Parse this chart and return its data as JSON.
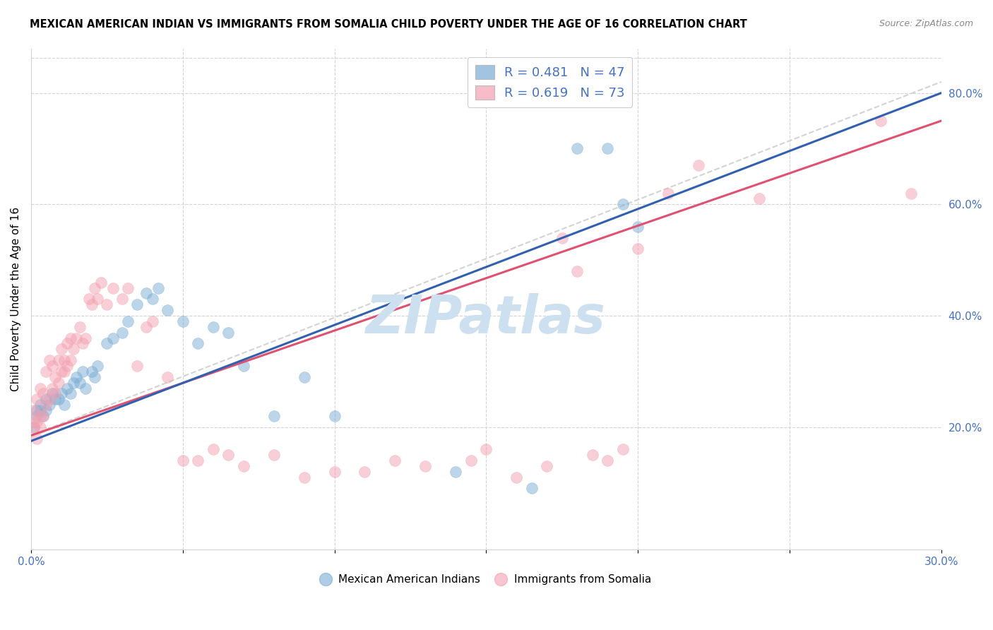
{
  "title": "MEXICAN AMERICAN INDIAN VS IMMIGRANTS FROM SOMALIA CHILD POVERTY UNDER THE AGE OF 16 CORRELATION CHART",
  "source": "Source: ZipAtlas.com",
  "tick_color": "#4472c4",
  "ylabel": "Child Poverty Under the Age of 16",
  "xlim": [
    0.0,
    0.3
  ],
  "ylim": [
    -0.02,
    0.88
  ],
  "blue_R": 0.481,
  "blue_N": 47,
  "pink_R": 0.619,
  "pink_N": 73,
  "blue_color": "#7aadd4",
  "pink_color": "#f4a0b0",
  "blue_line_color": "#3060b0",
  "pink_line_color": "#e05070",
  "blue_label": "Mexican American Indians",
  "pink_label": "Immigrants from Somalia",
  "legend_R_color": "#4472c4",
  "watermark": "ZIPatlas",
  "watermark_color": "#cde0ef",
  "blue_scatter_x": [
    0.001,
    0.002,
    0.002,
    0.003,
    0.003,
    0.004,
    0.005,
    0.005,
    0.006,
    0.007,
    0.008,
    0.009,
    0.01,
    0.011,
    0.012,
    0.013,
    0.014,
    0.015,
    0.016,
    0.017,
    0.018,
    0.02,
    0.021,
    0.022,
    0.025,
    0.027,
    0.03,
    0.032,
    0.035,
    0.038,
    0.04,
    0.042,
    0.045,
    0.05,
    0.055,
    0.06,
    0.065,
    0.07,
    0.08,
    0.09,
    0.1,
    0.14,
    0.165,
    0.18,
    0.19,
    0.195,
    0.2
  ],
  "blue_scatter_y": [
    0.2,
    0.22,
    0.23,
    0.23,
    0.24,
    0.22,
    0.23,
    0.25,
    0.24,
    0.26,
    0.25,
    0.25,
    0.26,
    0.24,
    0.27,
    0.26,
    0.28,
    0.29,
    0.28,
    0.3,
    0.27,
    0.3,
    0.29,
    0.31,
    0.35,
    0.36,
    0.37,
    0.39,
    0.42,
    0.44,
    0.43,
    0.45,
    0.41,
    0.39,
    0.35,
    0.38,
    0.37,
    0.31,
    0.22,
    0.29,
    0.22,
    0.12,
    0.09,
    0.7,
    0.7,
    0.6,
    0.56
  ],
  "pink_scatter_x": [
    0.001,
    0.001,
    0.001,
    0.002,
    0.002,
    0.002,
    0.003,
    0.003,
    0.003,
    0.004,
    0.004,
    0.005,
    0.005,
    0.006,
    0.006,
    0.007,
    0.007,
    0.008,
    0.008,
    0.009,
    0.009,
    0.01,
    0.01,
    0.011,
    0.011,
    0.012,
    0.012,
    0.013,
    0.013,
    0.014,
    0.015,
    0.016,
    0.017,
    0.018,
    0.019,
    0.02,
    0.021,
    0.022,
    0.023,
    0.025,
    0.027,
    0.03,
    0.032,
    0.035,
    0.038,
    0.04,
    0.045,
    0.05,
    0.055,
    0.06,
    0.065,
    0.07,
    0.08,
    0.09,
    0.1,
    0.11,
    0.12,
    0.13,
    0.145,
    0.15,
    0.16,
    0.17,
    0.175,
    0.18,
    0.185,
    0.19,
    0.195,
    0.2,
    0.21,
    0.22,
    0.24,
    0.28,
    0.29
  ],
  "pink_scatter_y": [
    0.2,
    0.21,
    0.23,
    0.18,
    0.21,
    0.25,
    0.2,
    0.22,
    0.27,
    0.22,
    0.26,
    0.24,
    0.3,
    0.25,
    0.32,
    0.27,
    0.31,
    0.26,
    0.29,
    0.28,
    0.32,
    0.3,
    0.34,
    0.3,
    0.32,
    0.31,
    0.35,
    0.32,
    0.36,
    0.34,
    0.36,
    0.38,
    0.35,
    0.36,
    0.43,
    0.42,
    0.45,
    0.43,
    0.46,
    0.42,
    0.45,
    0.43,
    0.45,
    0.31,
    0.38,
    0.39,
    0.29,
    0.14,
    0.14,
    0.16,
    0.15,
    0.13,
    0.15,
    0.11,
    0.12,
    0.12,
    0.14,
    0.13,
    0.14,
    0.16,
    0.11,
    0.13,
    0.54,
    0.48,
    0.15,
    0.14,
    0.16,
    0.52,
    0.62,
    0.67,
    0.61,
    0.75,
    0.62
  ],
  "blue_line_x0": 0.0,
  "blue_line_y0": 0.175,
  "blue_line_x1": 0.3,
  "blue_line_y1": 0.8,
  "pink_line_x0": 0.0,
  "pink_line_y0": 0.185,
  "pink_line_x1": 0.3,
  "pink_line_y1": 0.75,
  "dash_line_x0": 0.0,
  "dash_line_y0": 0.185,
  "dash_line_x1": 0.3,
  "dash_line_y1": 0.82
}
